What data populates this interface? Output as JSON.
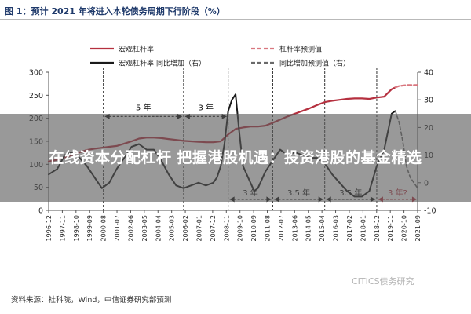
{
  "figure_title": "图 1：预计 2021 年将进入本轮债务周期下行阶段（%）",
  "source": "资料来源：社科院，Wind，中信证券研究部预测",
  "watermark": "CITICS债务研究",
  "banner": "在线资本分配杠杆 把握港股机遇：投资港股的基金精选",
  "chart_data": {
    "type": "line",
    "y_left": {
      "min": 0,
      "max": 300,
      "ticks": [
        0,
        50,
        100,
        150,
        200,
        250,
        300
      ]
    },
    "y_right": {
      "min": -10,
      "max": 40,
      "ticks": [
        -10,
        0,
        10,
        20,
        30,
        40
      ]
    },
    "x_ticks": [
      "1996-12",
      "1997-11",
      "1998-10",
      "1999-09",
      "2000-08",
      "2001-07",
      "2002-06",
      "2003-05",
      "2004-04",
      "2005-03",
      "2006-02",
      "2007-01",
      "2007-12",
      "2008-11",
      "2009-10",
      "2010-09",
      "2011-08",
      "2012-07",
      "2013-06",
      "2014-05",
      "2015-04",
      "2016-03",
      "2017-02",
      "2018-01",
      "2018-12",
      "2019-11",
      "2020-10",
      "2021-09"
    ],
    "legend": [
      {
        "label": "宏观杠杆率",
        "style": "solid",
        "color": "#b5303f"
      },
      {
        "label": "杠杆率预测值",
        "style": "dashed",
        "color": "#d9777f"
      },
      {
        "label": "宏观杠杆率:同比增加（右）",
        "style": "solid",
        "color": "#1a1a1a"
      },
      {
        "label": "同比增加预测值（右）",
        "style": "dashed",
        "color": "#6a6a6a"
      }
    ],
    "series": [
      {
        "name": "宏观杠杆率",
        "axis": "left",
        "x": [
          1996.92,
          1997.5,
          1998,
          1998.5,
          1999,
          1999.5,
          2000,
          2000.5,
          2001,
          2001.5,
          2002,
          2002.5,
          2003,
          2003.5,
          2004,
          2004.5,
          2005,
          2005.5,
          2006,
          2006.5,
          2007,
          2007.5,
          2008,
          2008.5,
          2009,
          2009.5,
          2010,
          2010.5,
          2011,
          2011.5,
          2012,
          2012.5,
          2013,
          2013.5,
          2014,
          2014.5,
          2015,
          2015.5,
          2016,
          2016.5,
          2017,
          2017.5,
          2018,
          2018.5,
          2019,
          2019.5,
          2020,
          2020.25
        ],
        "values": [
          106,
          110,
          115,
          120,
          126,
          131,
          134,
          136,
          138,
          140,
          145,
          150,
          156,
          158,
          158,
          157,
          155,
          153,
          151,
          150,
          149,
          148,
          148,
          150,
          165,
          177,
          180,
          182,
          182,
          184,
          190,
          197,
          204,
          210,
          216,
          222,
          229,
          235,
          238,
          240,
          242,
          243,
          243,
          242,
          245,
          247,
          263,
          267
        ]
      },
      {
        "name": "杠杆率预测值",
        "axis": "left",
        "x": [
          2020.25,
          2020.5,
          2021,
          2021.5,
          2021.75
        ],
        "values": [
          267,
          270,
          272,
          272,
          272
        ]
      },
      {
        "name": "宏观杠杆率:同比增加（右）",
        "axis": "right",
        "x": [
          1996.92,
          1997.5,
          1998,
          1998.5,
          1999,
          1999.5,
          2000,
          2000.5,
          2001,
          2001.5,
          2002,
          2002.5,
          2003,
          2003.5,
          2004,
          2004.5,
          2005,
          2005.5,
          2006,
          2006.5,
          2007,
          2007.5,
          2008,
          2008.25,
          2008.5,
          2008.75,
          2009,
          2009.25,
          2009.5,
          2009.75,
          2010,
          2010.25,
          2010.5,
          2010.75,
          2011,
          2011.5,
          2012,
          2012.5,
          2013,
          2013.5,
          2014,
          2014.5,
          2015,
          2015.5,
          2016,
          2016.5,
          2017,
          2017.5,
          2018,
          2018.5,
          2019,
          2019.5,
          2020,
          2020.25
        ],
        "values": [
          3,
          5,
          10,
          11,
          9,
          6,
          2,
          -2,
          0,
          5,
          9,
          13,
          14,
          12,
          12,
          8,
          3,
          -1,
          -2,
          -1,
          0,
          -1,
          0,
          2,
          6,
          14,
          26,
          30,
          32,
          18,
          6,
          3,
          0,
          -3,
          -2,
          4,
          8,
          12,
          10,
          11,
          10,
          9,
          9,
          7,
          3,
          0,
          -3,
          -5,
          -5,
          -3,
          6,
          12,
          25,
          26
        ]
      },
      {
        "name": "同比增加预测值（右）",
        "axis": "right",
        "x": [
          2020.25,
          2020.5,
          2020.75,
          2021,
          2021.25,
          2021.5,
          2021.75
        ],
        "values": [
          26,
          22,
          15,
          6,
          2,
          0,
          -2
        ]
      }
    ],
    "periods": [
      {
        "from": 2000.6,
        "to": 2006.0,
        "label": "5 年",
        "y": 24
      },
      {
        "from": 2006.0,
        "to": 2009.0,
        "label": "3 年",
        "y": 24
      },
      {
        "from": 2009.0,
        "to": 2012.0,
        "label": "3 年",
        "y": -6
      },
      {
        "from": 2012.0,
        "to": 2015.5,
        "label": "3.5 年",
        "y": -6
      },
      {
        "from": 2015.5,
        "to": 2019.0,
        "label": "3.5 年",
        "y": -6
      },
      {
        "from": 2019.0,
        "to": 2021.8,
        "label": "3 年?",
        "y": -6
      }
    ],
    "period_dividers": [
      2000.6,
      2006.0,
      2009.0,
      2012.0,
      2015.5,
      2019.0
    ]
  }
}
